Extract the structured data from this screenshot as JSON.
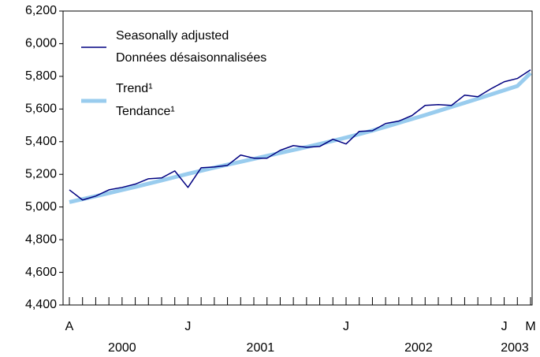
{
  "chart_data": {
    "type": "line",
    "categories": [
      "A",
      null,
      null,
      null,
      null,
      null,
      null,
      null,
      null,
      "J",
      null,
      null,
      null,
      null,
      null,
      null,
      null,
      null,
      null,
      null,
      null,
      "J",
      null,
      null,
      null,
      null,
      null,
      null,
      null,
      null,
      null,
      null,
      null,
      "J",
      null,
      "M"
    ],
    "years": [
      "2000",
      "2001",
      "2002",
      "2003"
    ],
    "series": [
      {
        "name": [
          "Seasonally adjusted",
          "Données désaisonnalisées"
        ],
        "color": "#000080",
        "values": [
          5105,
          5043,
          5067,
          5105,
          5120,
          5140,
          5173,
          5178,
          5221,
          5120,
          5240,
          5245,
          5255,
          5318,
          5299,
          5299,
          5347,
          5376,
          5366,
          5371,
          5415,
          5386,
          5463,
          5467,
          5511,
          5526,
          5560,
          5622,
          5627,
          5622,
          5685,
          5675,
          5724,
          5767,
          5787,
          5840
        ]
      },
      {
        "name": [
          "Trend¹",
          "Tendance¹"
        ],
        "color": "#99ccee",
        "values": [
          5030,
          5048,
          5066,
          5085,
          5104,
          5123,
          5143,
          5163,
          5183,
          5203,
          5222,
          5241,
          5259,
          5277,
          5295,
          5313,
          5331,
          5349,
          5367,
          5386,
          5405,
          5425,
          5446,
          5468,
          5491,
          5515,
          5539,
          5563,
          5588,
          5613,
          5638,
          5663,
          5689,
          5715,
          5741,
          5820
        ]
      }
    ],
    "ylim": [
      4400,
      6200
    ],
    "yticks": [
      {
        "value": 4400,
        "label": "4,400"
      },
      {
        "value": 4600,
        "label": "4,600"
      },
      {
        "value": 4800,
        "label": "4,800"
      },
      {
        "value": 5000,
        "label": "5,000"
      },
      {
        "value": 5200,
        "label": "5,200"
      },
      {
        "value": 5400,
        "label": "5,400"
      },
      {
        "value": 5600,
        "label": "5,600"
      },
      {
        "value": 5800,
        "label": "5,800"
      },
      {
        "value": 6000,
        "label": "6,000"
      },
      {
        "value": 6200,
        "label": "6,200"
      }
    ],
    "grid": false
  }
}
